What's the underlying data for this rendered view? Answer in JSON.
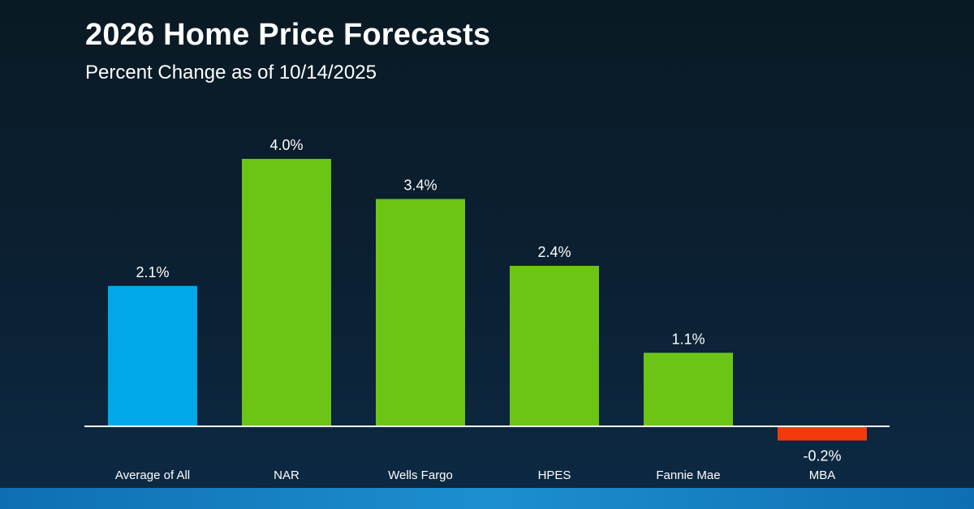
{
  "header": {
    "title": "2026 Home Price Forecasts",
    "subtitle": "Percent Change as of 10/14/2025"
  },
  "colors": {
    "average": "#00a8e8",
    "positive": "#6cc414",
    "negative": "#f23a0c",
    "baseline": "#ffffff",
    "label_text": "#ffffff"
  },
  "chart_data": {
    "type": "bar",
    "title": "2026 Home Price Forecasts",
    "subtitle": "Percent Change as of 10/14/2025",
    "xlabel": "",
    "ylabel": "",
    "categories": [
      "Average of All",
      "NAR",
      "Wells Fargo",
      "HPES",
      "Fannie Mae",
      "MBA"
    ],
    "values": [
      2.1,
      4.0,
      3.4,
      2.4,
      1.1,
      -0.2
    ],
    "value_labels": [
      "2.1%",
      "4.0%",
      "3.4%",
      "2.4%",
      "1.1%",
      "-0.2%"
    ],
    "bar_color_roles": [
      "average",
      "positive",
      "positive",
      "positive",
      "positive",
      "negative"
    ],
    "ylim": [
      -0.2,
      4.0
    ],
    "grid": false,
    "legend": "none"
  }
}
